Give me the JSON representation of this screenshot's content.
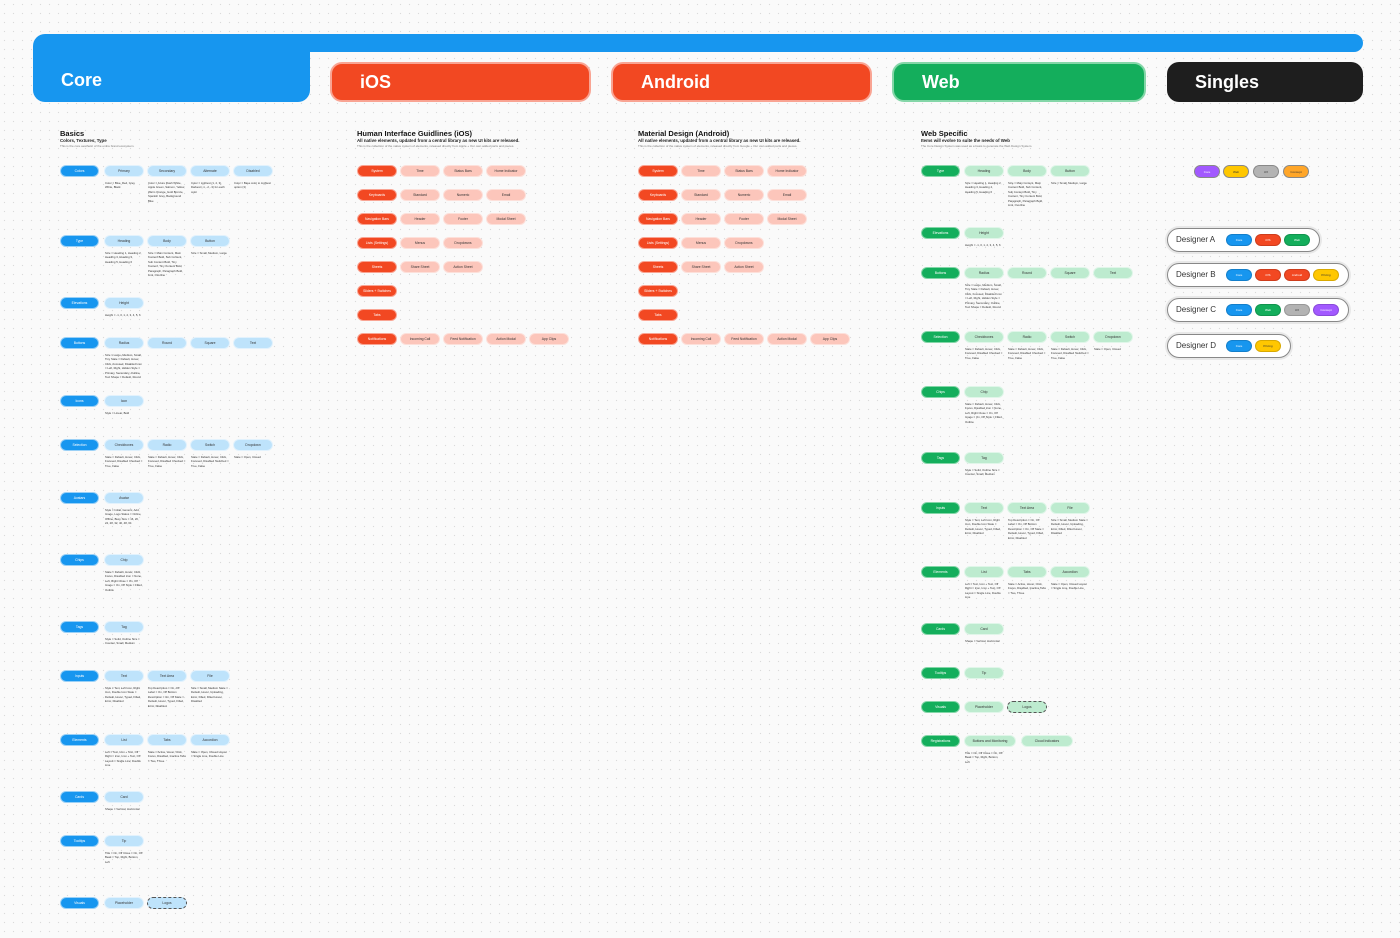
{
  "tabs": {
    "core": "Core",
    "ios": "iOS",
    "android": "Android",
    "web": "Web",
    "singles": "Singles"
  },
  "colors": {
    "core": "#1796ef",
    "ios": "#f24822",
    "android": "#f24822",
    "web": "#14ae5c",
    "singles": "#1e1e1e"
  },
  "core": {
    "title": "Basics",
    "subtitle": "Colors, Textures, Type",
    "description": "This is the core aesthetic of the entire brand ecosystem.",
    "rows": [
      {
        "main": "Colors",
        "subs": [
          "Primary",
          "Secondary",
          "Alternate",
          "Disabled"
        ],
        "notes": [
          "Color = Blue, Red, Grey, White, Black",
          "Color = Azure Flash White, Apple Green, Salmon, Yellow, Warm Orange, Gold Bronze, Spanish Grey, Background Blue",
          "Color = Lightest (1, 2, 3), Darkest (-1, -2, -3) for each color",
          "Color = Base color to Lightest option (3)"
        ]
      },
      {
        "main": "Type",
        "subs": [
          "Heading",
          "Body",
          "Button"
        ],
        "notes": [
          "Size = Heading 1, Heading 2, Heading 3, Heading 4, Heading 5, Heading 6",
          "Size = Main Content, Main Content Bold, Sub Content, Sub Content Bold, Tiny Content, Tiny Content Bold, Paragraph, Paragraph Bold, Link, Overline",
          "Size = Small, Medium, Large"
        ]
      },
      {
        "main": "Elevations",
        "subs": [
          "Height"
        ],
        "notes": [
          "Height = -1, 0, 1, 2, 3, 4, 5, 6"
        ]
      },
      {
        "main": "Buttons",
        "subs": [
          "Radius",
          "Round",
          "Square",
          "Text"
        ],
        "notes": [
          "Size = Large, Medium, Small, Tiny State = Default, Hover, Click, Focused, Disabled Icon = Left, Right, Hidden Style = Primary, Secondary, Outline, Text Shape = Default, Round"
        ]
      },
      {
        "main": "Icons",
        "subs": [
          "Icon"
        ],
        "notes": [
          "Style = Linear, Bold"
        ]
      },
      {
        "main": "Selection",
        "subs": [
          "Checkboxes",
          "Radio",
          "Switch",
          "Dropdown"
        ],
        "notes": [
          "State = Default, Hover, Click, Focused, Disabled Checked = True, False",
          "State = Default, Hover, Click, Focused, Disabled Checked = True, False",
          "State = Default, Hover, Click, Focused, Disabled Switched = True, False",
          "State = Open, Closed"
        ]
      },
      {
        "main": "Avatars",
        "subs": [
          "Avatar"
        ],
        "notes": [
          "Style = Initial, Generic, Add, Image, Logo Status = Online, Offline, Busy Size = 16, 20, 24, 28, 32, 40, 48, 64"
        ]
      },
      {
        "main": "Chips",
        "subs": [
          "Chip"
        ],
        "notes": [
          "State = Default, Hover, Click, Focus, Disabled Icon = None, Left, Right Close = On, Off Image = On, Off Style = Filled, Outline"
        ]
      },
      {
        "main": "Tags",
        "subs": [
          "Tag"
        ],
        "notes": [
          "Style = Solid, Outline Size = Counter, Small, Medium"
        ]
      },
      {
        "main": "Inputs",
        "subs": [
          "Text",
          "Text Area",
          "File"
        ],
        "notes": [
          "Style = Text, Left Icon, Right Icon, Double Icon State = Default, Hover, Typed, Filled, Error, Disabled",
          "Top Description = On, Off Label = On, Off Bottom Description = On, Off State = Default, Hover, Typed, Filled, Error, Disabled",
          "Size = Small, Medium State = Default, Hover, Uploading, Error, Filled, Filled Hover, Disabled"
        ]
      },
      {
        "main": "Elements",
        "subs": [
          "List",
          "Tabs",
          "Accordion"
        ],
        "notes": [
          "Left = Text, Icon + Text, Off Right = Icon, Icon + Text, Off Layout = Single Line, Double Line",
          "State = Active, Hover, Click, Focus, Disabled, Inactive Tabs = Two, Three",
          "State = Open, Closed Layout = Single Line, Double Line"
        ]
      },
      {
        "main": "Cards",
        "subs": [
          "Card"
        ],
        "notes": [
          "Shape = Vertical, Horizontal"
        ]
      },
      {
        "main": "Tooltips",
        "subs": [
          "Tip"
        ],
        "notes": [
          "Title = On, Off Close = On, Off Beak = Top, Right, Bottom, Left"
        ]
      },
      {
        "main": "Visuals",
        "subs": [
          "Placeholder",
          "Logos"
        ],
        "notes": []
      }
    ]
  },
  "ios": {
    "title": "Human Interface Guidlines (iOS)",
    "subtitle": "All native elements, updated from a central library as new UI kits are released.",
    "description": "This is the collection of the native system of elements, released directly from Apple + Our own added parts and pieces.",
    "rows": [
      {
        "main": "System",
        "subs": [
          "Time",
          "Status Bars",
          "Home Indicator"
        ]
      },
      {
        "main": "Keyboards",
        "subs": [
          "Standard",
          "Numeric",
          "Email"
        ]
      },
      {
        "main": "Navigation Bars",
        "subs": [
          "Header",
          "Footer",
          "Modal Sheet"
        ]
      },
      {
        "main": "Lists (Settings)",
        "subs": [
          "Menus",
          "Dropdowns"
        ]
      },
      {
        "main": "Sheets",
        "subs": [
          "Share Sheet",
          "Action Sheet"
        ]
      },
      {
        "main": "Sliders + Switches",
        "subs": []
      },
      {
        "main": "Tabs",
        "subs": []
      },
      {
        "main": "Notifications",
        "subs": [
          "Incoming Call",
          "Feed Notification",
          "Action Modal",
          "App Clips"
        ]
      }
    ]
  },
  "android": {
    "title": "Material Design (Android)",
    "subtitle": "All native elements, updated from a central library as new UI kits are released.",
    "description": "This is the collection of the native system of elements, released directly from Google + Our own added parts and pieces.",
    "rows": [
      {
        "main": "System",
        "subs": [
          "Time",
          "Status Bars",
          "Home Indicator"
        ]
      },
      {
        "main": "Keyboards",
        "subs": [
          "Standard",
          "Numeric",
          "Email"
        ]
      },
      {
        "main": "Navigation Bars",
        "subs": [
          "Header",
          "Footer",
          "Modal Sheet"
        ]
      },
      {
        "main": "Lists (Settings)",
        "subs": [
          "Menus",
          "Dropdowns"
        ]
      },
      {
        "main": "Sheets",
        "subs": [
          "Share Sheet",
          "Action Sheet"
        ]
      },
      {
        "main": "Sliders + Switches",
        "subs": []
      },
      {
        "main": "Tabs",
        "subs": []
      },
      {
        "main": "Notifications",
        "subs": [
          "Incoming Call",
          "Feed Notification",
          "Action Modal",
          "App Clips"
        ]
      }
    ]
  },
  "web": {
    "title": "Web Specific",
    "subtitle": "Items will evolve to suite the needs of Web",
    "description": "The Core Design System was used as a basis to generate the Web Design System.",
    "rows": [
      {
        "main": "Type",
        "subs": [
          "Heading",
          "Body",
          "Button"
        ],
        "notes": [
          "Size = Heading 1, Heading 2, Heading 3, Heading 4, Heading 5, Heading 6",
          "Size = Main Content, Main Content Bold, Sub Content, Sub Content Bold, Tiny Content, Tiny Content Bold, Paragraph, Paragraph Bold, Link, Overline",
          "Size = Small, Medium, Large"
        ]
      },
      {
        "main": "Elevations",
        "subs": [
          "Height"
        ],
        "notes": [
          "Height = -1, 0, 1, 2, 3, 4, 5, 6"
        ]
      },
      {
        "main": "Buttons",
        "subs": [
          "Radius",
          "Round",
          "Square",
          "Text"
        ],
        "notes": [
          "Size = Large, Medium, Small, Tiny State = Default, Hover, Click, Focused, Disabled Icon = Left, Right, Hidden Style = Primary, Secondary, Outline, Text Shape = Default, Round"
        ]
      },
      {
        "main": "Selection",
        "subs": [
          "Checkboxes",
          "Radio",
          "Switch",
          "Dropdown"
        ],
        "notes": [
          "State = Default, Hover, Click, Focused, Disabled Checked = True, False",
          "State = Default, Hover, Click, Focused, Disabled Checked = True, False",
          "State = Default, Hover, Click, Focused, Disabled Switched = True, False",
          "State = Open, Closed"
        ]
      },
      {
        "main": "Chips",
        "subs": [
          "Chip"
        ],
        "notes": [
          "State = Default, Hover, Click, Focus, Disabled Icon = None, Left, Right Close = On, Off Image = On, Off Style = Filled, Outline"
        ]
      },
      {
        "main": "Tags",
        "subs": [
          "Tag"
        ],
        "notes": [
          "Style = Solid, Outline Size = Counter, Small, Medium"
        ]
      },
      {
        "main": "Inputs",
        "subs": [
          "Text",
          "Text Area",
          "File"
        ],
        "notes": [
          "Style = Text, Left Icon, Right Icon, Double Icon State = Default, Hover, Typed, Filled, Error, Disabled",
          "Top Description = On, Off Label = On, Off Bottom Description = On, Off State = Default, Hover, Typed, Filled, Error, Disabled",
          "Size = Small, Medium State = Default, Hover, Uploading, Error, Filled, Filled Hover, Disabled"
        ]
      },
      {
        "main": "Elements",
        "subs": [
          "List",
          "Tabs",
          "Accordion"
        ],
        "notes": [
          "Left = Text, Icon + Text, Off Right = Icon, Icon + Text, Off Layout = Single Line, Double Line",
          "State = Active, Hover, Click, Focus, Disabled, Inactive Tabs = Two, Three",
          "State = Open, Closed Layout = Single Line, Double Line"
        ]
      },
      {
        "main": "Cards",
        "subs": [
          "Card"
        ],
        "notes": [
          "Shape = Vertical, Horizontal"
        ]
      },
      {
        "main": "Tooltips",
        "subs": [
          "Tip"
        ],
        "notes": []
      },
      {
        "main": "Visuals",
        "subs": [
          "Placeholder",
          "Logos"
        ],
        "notes": []
      },
      {
        "main": "Registrations",
        "subs": [
          "Buttons and Monitoring",
          "Cloud Indicators"
        ],
        "notes": [
          "Title = On, Off Close = On, Off Beak = Top, Right, Bottom, Left"
        ]
      }
    ]
  },
  "singles": {
    "pills": [
      {
        "label": "Core",
        "color": "#a259ff"
      },
      {
        "label": "Web",
        "color": "#ffc700"
      },
      {
        "label": "UX",
        "color": "#b3b3b3"
      },
      {
        "label": "Concept",
        "color": "#ffa629"
      }
    ],
    "designers": [
      {
        "name": "Designer A",
        "pills": [
          {
            "label": "Core",
            "color": "#1796ef"
          },
          {
            "label": "iOS",
            "color": "#f24822"
          },
          {
            "label": "Web",
            "color": "#14ae5c"
          }
        ]
      },
      {
        "name": "Designer B",
        "pills": [
          {
            "label": "Core",
            "color": "#1796ef"
          },
          {
            "label": "iOS",
            "color": "#f24822"
          },
          {
            "label": "Android",
            "color": "#f24822"
          },
          {
            "label": "Pricing",
            "color": "#ffc700"
          }
        ]
      },
      {
        "name": "Designer C",
        "pills": [
          {
            "label": "Core",
            "color": "#1796ef"
          },
          {
            "label": "Web",
            "color": "#14ae5c"
          },
          {
            "label": "UX",
            "color": "#b3b3b3"
          },
          {
            "label": "Concept",
            "color": "#a259ff"
          }
        ]
      },
      {
        "name": "Designer D",
        "pills": [
          {
            "label": "Core",
            "color": "#1796ef"
          },
          {
            "label": "Pricing",
            "color": "#ffc700"
          }
        ]
      }
    ]
  }
}
